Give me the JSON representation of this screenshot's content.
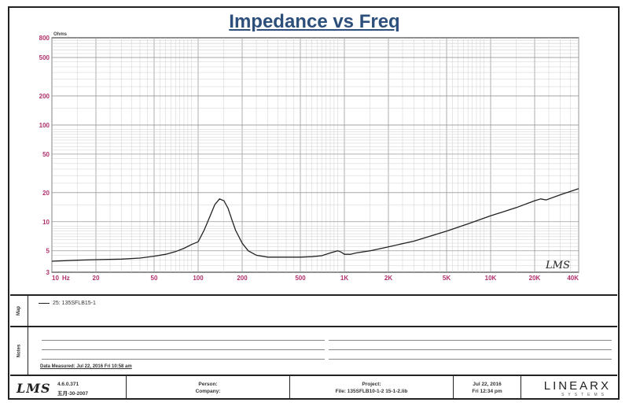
{
  "chart_data": {
    "type": "line",
    "title": "Impedance vs Freq",
    "y_unit": "Ohms",
    "x_unit": "Hz",
    "xscale": "log",
    "yscale": "log",
    "xlim": [
      10,
      40000
    ],
    "ylim": [
      3,
      800
    ],
    "x_tick_labels": [
      "10",
      "20",
      "50",
      "100",
      "200",
      "500",
      "1K",
      "2K",
      "5K",
      "10K",
      "20K",
      "40K"
    ],
    "x_ticks": [
      10,
      20,
      50,
      100,
      200,
      500,
      1000,
      2000,
      5000,
      10000,
      20000,
      40000
    ],
    "y_tick_labels": [
      "800",
      "500",
      "200",
      "100",
      "50",
      "20",
      "10",
      "5",
      "3"
    ],
    "y_ticks": [
      800,
      500,
      200,
      100,
      50,
      20,
      10,
      5,
      3
    ],
    "grid": true,
    "series": [
      {
        "name": "25: 135SFLB15-1",
        "color": "#222222",
        "x": [
          10,
          15,
          20,
          30,
          40,
          50,
          60,
          70,
          80,
          90,
          100,
          110,
          120,
          130,
          140,
          150,
          160,
          170,
          180,
          200,
          220,
          250,
          300,
          400,
          500,
          600,
          700,
          800,
          900,
          950,
          1000,
          1100,
          1200,
          1500,
          2000,
          3000,
          4000,
          5000,
          7000,
          10000,
          15000,
          20000,
          22000,
          24000,
          30000,
          40000
        ],
        "y": [
          3.9,
          4.0,
          4.05,
          4.1,
          4.2,
          4.4,
          4.6,
          4.9,
          5.3,
          5.8,
          6.2,
          8.2,
          11.2,
          15.0,
          17.2,
          16.5,
          13.8,
          10.5,
          8.2,
          6.0,
          5.0,
          4.5,
          4.3,
          4.3,
          4.3,
          4.35,
          4.45,
          4.75,
          5.0,
          4.85,
          4.6,
          4.6,
          4.75,
          5.0,
          5.5,
          6.3,
          7.2,
          8.0,
          9.5,
          11.5,
          14.0,
          16.5,
          17.2,
          16.8,
          19.0,
          22.0
        ]
      }
    ]
  },
  "legend": {
    "entry": "25: 135SFLB15-1"
  },
  "map_label": "Map",
  "notes_label": "Notes",
  "date_measured": "Data Measured: Jul 22, 2016  Fri 10:58 am",
  "chart_logo": "LMS",
  "footer": {
    "logo": "LMS",
    "version": "4.6.0.371",
    "version_date": "五月-30-2007",
    "person_label": "Person:",
    "company_label": "Company:",
    "project_label": "Project:",
    "file_label": "File: 135SFLB10-1-2 15-1-2.lib",
    "date": "Jul 22, 2016",
    "time": "Fri 12:34 pm",
    "brand": "LINEARX",
    "brand_sub": "SYSTEMS"
  }
}
